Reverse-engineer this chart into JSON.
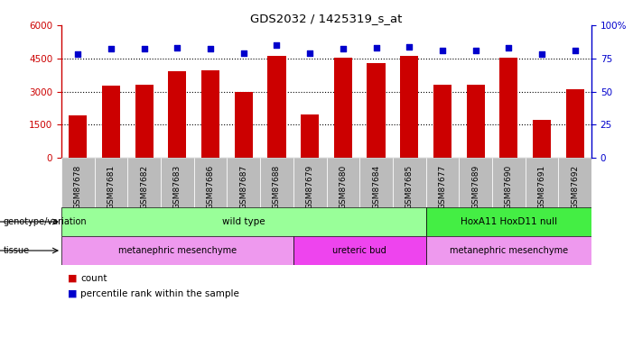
{
  "title": "GDS2032 / 1425319_s_at",
  "samples": [
    "GSM87678",
    "GSM87681",
    "GSM87682",
    "GSM87683",
    "GSM87686",
    "GSM87687",
    "GSM87688",
    "GSM87679",
    "GSM87680",
    "GSM87684",
    "GSM87685",
    "GSM87677",
    "GSM87689",
    "GSM87690",
    "GSM87691",
    "GSM87692"
  ],
  "counts": [
    1900,
    3250,
    3300,
    3900,
    3950,
    3000,
    4600,
    1950,
    4550,
    4300,
    4600,
    3300,
    3300,
    4550,
    1700,
    3100
  ],
  "percentile_ranks": [
    78,
    82,
    82,
    83,
    82,
    79,
    85,
    79,
    82,
    83,
    84,
    81,
    81,
    83,
    78,
    81
  ],
  "bar_color": "#cc0000",
  "dot_color": "#0000cc",
  "left_ylim": [
    0,
    6000
  ],
  "left_yticks": [
    0,
    1500,
    3000,
    4500,
    6000
  ],
  "left_yticklabels": [
    "0",
    "1500",
    "3000",
    "4500",
    "6000"
  ],
  "right_ylim": [
    0,
    100
  ],
  "right_yticks": [
    0,
    25,
    50,
    75,
    100
  ],
  "right_yticklabels": [
    "0",
    "25",
    "50",
    "75",
    "100%"
  ],
  "hlines": [
    1500,
    3000,
    4500
  ],
  "genotype_labels": [
    {
      "text": "wild type",
      "start": 0,
      "end": 10,
      "color": "#99ff99"
    },
    {
      "text": "HoxA11 HoxD11 null",
      "start": 11,
      "end": 15,
      "color": "#44ee44"
    }
  ],
  "tissue_labels": [
    {
      "text": "metanephric mesenchyme",
      "start": 0,
      "end": 6,
      "color": "#ee99ee"
    },
    {
      "text": "ureteric bud",
      "start": 7,
      "end": 10,
      "color": "#ee44ee"
    },
    {
      "text": "metanephric mesenchyme",
      "start": 11,
      "end": 15,
      "color": "#ee99ee"
    }
  ],
  "legend_count_color": "#cc0000",
  "legend_dot_color": "#0000cc",
  "tick_bg_color": "#bbbbbb"
}
